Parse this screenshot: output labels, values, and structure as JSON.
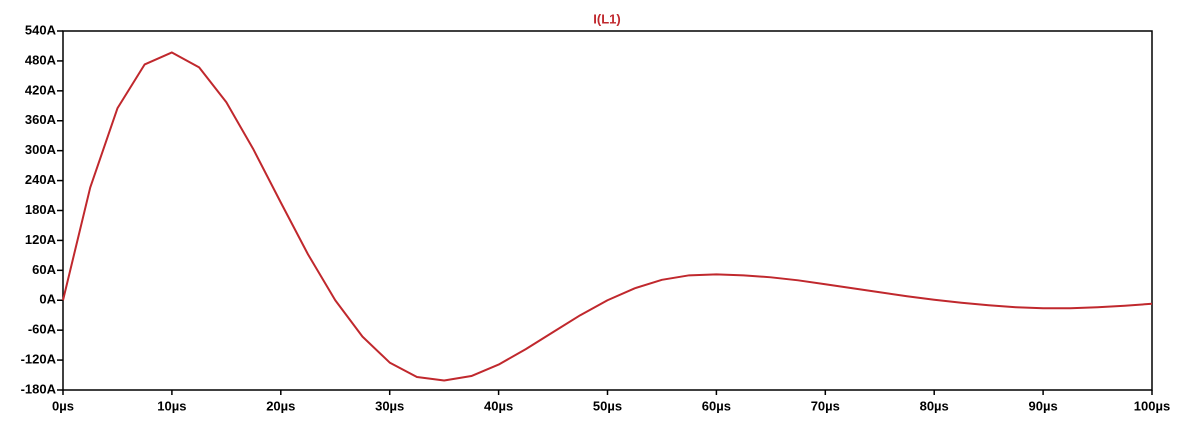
{
  "chart_data": {
    "type": "line",
    "title": "I(L1)",
    "x": [
      0,
      2.5,
      5,
      7.5,
      10,
      12.5,
      15,
      17.5,
      20,
      22.5,
      25,
      27.5,
      30,
      32.5,
      35,
      37.5,
      40,
      42.5,
      45,
      47.5,
      50,
      52.5,
      55,
      57.5,
      60,
      62.5,
      65,
      67.5,
      70,
      72.5,
      75,
      77.5,
      80,
      82.5,
      85,
      87.5,
      90,
      92.5,
      95,
      97.5,
      100
    ],
    "series": [
      {
        "name": "I(L1)",
        "color": "#c0282d",
        "values": [
          0,
          226,
          385,
          473,
          497,
          467,
          397,
          302,
          196,
          92,
          0,
          -73,
          -125,
          -154,
          -161,
          -152,
          -129,
          -98,
          -64,
          -30,
          0,
          24,
          41,
          50,
          52,
          50,
          46,
          40,
          32,
          24,
          16,
          8,
          1,
          -5,
          -10,
          -14,
          -16,
          -16,
          -14,
          -11,
          -7
        ]
      }
    ],
    "xlim": [
      0,
      100
    ],
    "xticks": [
      {
        "value": 0,
        "label": "0µs"
      },
      {
        "value": 10,
        "label": "10µs"
      },
      {
        "value": 20,
        "label": "20µs"
      },
      {
        "value": 30,
        "label": "30µs"
      },
      {
        "value": 40,
        "label": "40µs"
      },
      {
        "value": 50,
        "label": "50µs"
      },
      {
        "value": 60,
        "label": "60µs"
      },
      {
        "value": 70,
        "label": "70µs"
      },
      {
        "value": 80,
        "label": "80µs"
      },
      {
        "value": 90,
        "label": "90µs"
      },
      {
        "value": 100,
        "label": "100µs"
      }
    ],
    "ylim": [
      -180,
      540
    ],
    "yticks": [
      {
        "value": -180,
        "label": "-180A"
      },
      {
        "value": -120,
        "label": "-120A"
      },
      {
        "value": -60,
        "label": "-60A"
      },
      {
        "value": 0,
        "label": "0A"
      },
      {
        "value": 60,
        "label": "60A"
      },
      {
        "value": 120,
        "label": "120A"
      },
      {
        "value": 180,
        "label": "180A"
      },
      {
        "value": 240,
        "label": "240A"
      },
      {
        "value": 300,
        "label": "300A"
      },
      {
        "value": 360,
        "label": "360A"
      },
      {
        "value": 420,
        "label": "420A"
      },
      {
        "value": 480,
        "label": "480A"
      },
      {
        "value": 540,
        "label": "540A"
      }
    ],
    "grid": false
  }
}
